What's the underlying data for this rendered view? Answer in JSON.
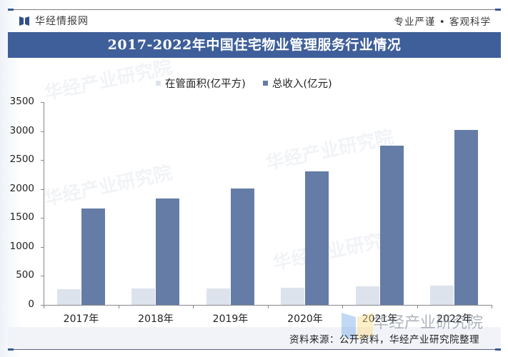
{
  "header": {
    "brand": "华经情报网",
    "slogan": "专业严谨 • 客观科学"
  },
  "title": "2017-2022年中国住宅物业管理服务行业情况",
  "legend": [
    {
      "label": "在管面积(亿平方)",
      "color": "#dde3ec"
    },
    {
      "label": "总收入(亿元)",
      "color": "#647ca6"
    }
  ],
  "watermarks": [
    "华经产业研究院",
    "华经产业研究院",
    "华经产业研究院",
    "华经产业研究院"
  ],
  "overlay_watermark": "华经产业研究院",
  "source": "资料来源：公开资料，华经产业研究院整理",
  "chart_data": {
    "type": "bar",
    "title": "2017-2022年中国住宅物业管理服务行业情况",
    "xlabel": "",
    "ylabel": "",
    "ylim": [
      0,
      3500
    ],
    "yticks": [
      0,
      500,
      1000,
      1500,
      2000,
      2500,
      3000,
      3500
    ],
    "ytick_labels": [
      "0",
      "500",
      "1000",
      "1500",
      "2000",
      "2500",
      "3000",
      "3500"
    ],
    "categories": [
      "2017年",
      "2018年",
      "2019年",
      "2020年",
      "2021年",
      "2022年"
    ],
    "series": [
      {
        "name": "在管面积(亿平方)",
        "color": "#dde3ec",
        "values": [
          271,
          284,
          284,
          301,
          318,
          331
        ]
      },
      {
        "name": "总收入(亿元)",
        "color": "#647ca6",
        "values": [
          1665,
          1837,
          2010,
          2305,
          2750,
          3020
        ]
      }
    ],
    "grid": false,
    "legend_position": "top"
  }
}
